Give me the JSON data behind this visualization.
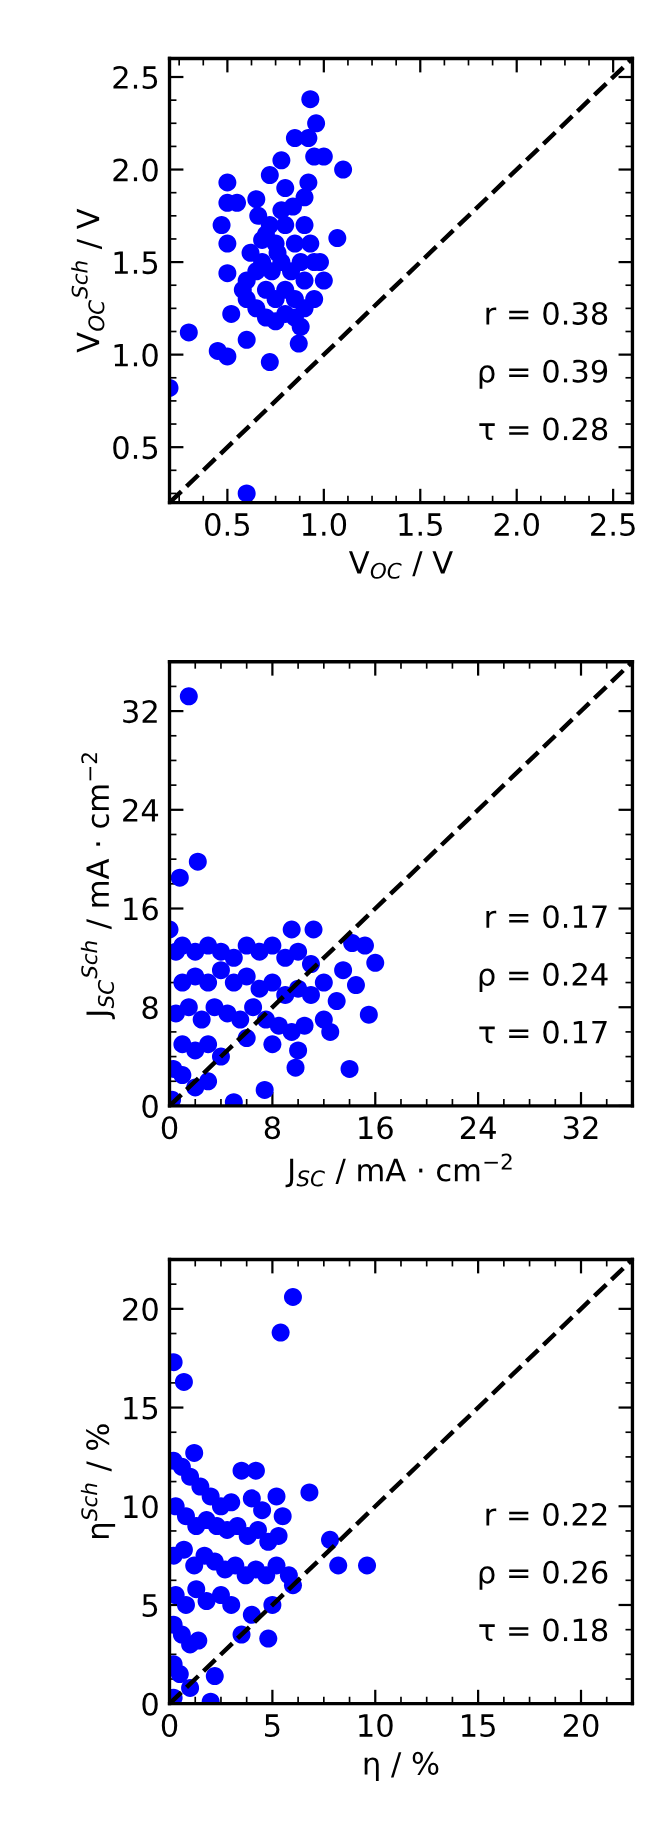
{
  "chart_data": [
    {
      "type": "scatter",
      "xlabel": "V$_{OC}$ / V",
      "ylabel": "V$_{OC}$$^{Sch}$ / V",
      "xlim": [
        0.2,
        2.6
      ],
      "ylim": [
        0.2,
        2.6
      ],
      "xticks": [
        0.5,
        {
          "value": 1,
          "label": "1.0"
        },
        1.5,
        {
          "value": 2,
          "label": "2.0"
        },
        2.5
      ],
      "yticks": [
        0.5,
        {
          "value": 1,
          "label": "1.0"
        },
        1.5,
        {
          "value": 2,
          "label": "2.0"
        },
        2.5
      ],
      "grid": false,
      "marker": "circle",
      "annotations": [
        "r = 0.38",
        "ρ = 0.39",
        "τ = 0.28"
      ],
      "series": [
        {
          "color": "#0000ff",
          "x": [
            0.2,
            0.6,
            0.3,
            0.45,
            0.5,
            0.72,
            0.87,
            0.93,
            0.96,
            1.1,
            0.85,
            0.92,
            0.95,
            1.0,
            1.07,
            0.5,
            0.47,
            0.5,
            0.55,
            0.65,
            0.78,
            0.72,
            0.5,
            0.5,
            0.6,
            0.52,
            0.6,
            0.65,
            0.7,
            0.75,
            0.8,
            0.85,
            0.9,
            0.95,
            1.0,
            0.6,
            0.65,
            0.7,
            0.75,
            0.8,
            0.85,
            0.9,
            0.95,
            0.62,
            0.68,
            0.73,
            0.78,
            0.83,
            0.88,
            0.93,
            0.98,
            0.7,
            0.75,
            0.8,
            0.85,
            0.9,
            0.66,
            0.72,
            0.78,
            0.84,
            0.9,
            0.58,
            0.8,
            0.88,
            0.92,
            0.76,
            0.68
          ],
          "values": [
            0.82,
            0.25,
            1.12,
            1.02,
            0.99,
            0.96,
            1.06,
            2.38,
            2.25,
            2.0,
            2.17,
            2.17,
            2.07,
            2.07,
            1.63,
            1.93,
            1.7,
            1.82,
            1.82,
            1.84,
            2.05,
            1.97,
            1.44,
            1.6,
            1.08,
            1.22,
            1.3,
            1.25,
            1.2,
            1.18,
            1.22,
            1.2,
            1.25,
            1.3,
            1.4,
            1.4,
            1.45,
            1.35,
            1.3,
            1.35,
            1.3,
            1.4,
            1.5,
            1.55,
            1.5,
            1.45,
            1.5,
            1.45,
            1.5,
            1.6,
            1.5,
            1.65,
            1.6,
            1.7,
            1.6,
            1.7,
            1.75,
            1.7,
            1.78,
            1.8,
            1.85,
            1.35,
            1.9,
            1.15,
            1.93,
            1.55,
            1.62
          ]
        },
        {
          "type": "line",
          "color": "#000000",
          "line_style": "dashed",
          "marker": "none",
          "x": [
            0.2,
            2.6
          ],
          "values": [
            0.2,
            2.6
          ]
        }
      ]
    },
    {
      "type": "scatter",
      "xlabel": "J$_{SC}$ / mA · cm$^{−2}$",
      "ylabel": "J$_{SC}$$^{Sch}$ / mA · cm$^{−2}$",
      "xlim": [
        0,
        36
      ],
      "ylim": [
        0,
        36
      ],
      "xticks": [
        0,
        8,
        16,
        24,
        32
      ],
      "yticks": [
        0,
        8,
        16,
        24,
        32
      ],
      "grid": false,
      "marker": "circle",
      "annotations": [
        "r = 0.17",
        "ρ = 0.24",
        "τ = 0.17"
      ],
      "series": [
        {
          "color": "#0000ff",
          "x": [
            1.5,
            0.8,
            2.2,
            0,
            9.5,
            11.2,
            14.2,
            15.2,
            16,
            15.5,
            14,
            9.8,
            7.4,
            5,
            14.5,
            0.5,
            1,
            2,
            3,
            4,
            5,
            6,
            7,
            8,
            9,
            10,
            11,
            12,
            1,
            2,
            3,
            4,
            5,
            6,
            7,
            8,
            9,
            10,
            11,
            13,
            0.5,
            1.5,
            2.5,
            3.5,
            4.5,
            5.5,
            6.5,
            7.5,
            8.5,
            9.5,
            10.5,
            12,
            1,
            2,
            3,
            4,
            6,
            8,
            10,
            0.3,
            1,
            2,
            3,
            0.2,
            12.5,
            13.5
          ],
          "values": [
            33.2,
            18.5,
            19.8,
            14.3,
            14.3,
            14.3,
            13.2,
            13,
            11.6,
            7.4,
            3,
            3.1,
            1.3,
            0.3,
            9.8,
            12.5,
            13,
            12.5,
            13,
            12.5,
            12,
            13,
            12.5,
            13,
            12,
            12.5,
            11.5,
            10,
            10,
            10.5,
            10,
            11,
            10,
            10.5,
            9.5,
            10,
            9,
            9.5,
            9,
            8.5,
            7.5,
            8,
            7,
            8,
            7.5,
            7,
            8,
            7,
            6.5,
            6,
            6.5,
            7,
            5,
            4.5,
            5,
            4,
            5.5,
            5,
            4.5,
            3,
            2.5,
            1.5,
            2,
            0.5,
            6,
            11
          ]
        },
        {
          "type": "line",
          "color": "#000000",
          "line_style": "dashed",
          "marker": "none",
          "x": [
            0,
            36
          ],
          "values": [
            0,
            36
          ]
        }
      ]
    },
    {
      "type": "scatter",
      "xlabel": "η / %",
      "ylabel": "η$^{Sch}$ / %",
      "xlim": [
        0,
        22.5
      ],
      "ylim": [
        0,
        22.5
      ],
      "xticks": [
        0,
        5,
        10,
        15,
        20
      ],
      "yticks": [
        0,
        5,
        10,
        15,
        20
      ],
      "grid": false,
      "marker": "circle",
      "annotations": [
        "r = 0.22",
        "ρ = 0.26",
        "τ = 0.18"
      ],
      "series": [
        {
          "color": "#0000ff",
          "x": [
            0.2,
            0.7,
            5.4,
            6,
            6.8,
            7.8,
            8.2,
            9.6,
            4.8,
            2.2,
            2,
            1.2,
            3.5,
            4.2,
            5.2,
            6,
            5,
            3.5,
            0.2,
            0.6,
            1,
            1.5,
            2,
            2.5,
            3,
            4,
            4.5,
            5.5,
            0.3,
            0.8,
            1.3,
            1.8,
            2.3,
            2.8,
            3.3,
            3.8,
            4.3,
            4.8,
            5.3,
            0.2,
            0.7,
            1.2,
            1.7,
            2.2,
            2.7,
            3.2,
            3.7,
            4.2,
            4.7,
            5.2,
            0.3,
            0.8,
            1.3,
            1.8,
            2.5,
            3,
            0.2,
            0.6,
            1.0,
            1.4,
            0.2,
            0.5,
            1.0,
            0.2,
            4.0,
            5.8
          ],
          "values": [
            17.3,
            16.3,
            18.8,
            20.6,
            10.7,
            8.3,
            7,
            7,
            3.3,
            1.4,
            0.1,
            12.7,
            11.8,
            11.8,
            10.5,
            6,
            5,
            3.5,
            12.3,
            12,
            11.5,
            11,
            10.5,
            10,
            10.2,
            10.4,
            9.8,
            9.5,
            10,
            9.5,
            9,
            9.3,
            9,
            8.8,
            9,
            8.5,
            8.8,
            8.2,
            8.5,
            7.5,
            7.8,
            7,
            7.5,
            7.2,
            6.8,
            7,
            6.5,
            6.8,
            6.5,
            7,
            5.5,
            5,
            5.8,
            5.2,
            5.5,
            5,
            4,
            3.5,
            3,
            3.2,
            2,
            1.5,
            0.8,
            0.3,
            4.5,
            6.5
          ]
        },
        {
          "type": "line",
          "color": "#000000",
          "line_style": "dashed",
          "marker": "none",
          "x": [
            0,
            22.5
          ],
          "values": [
            0,
            22.5
          ]
        }
      ]
    }
  ]
}
